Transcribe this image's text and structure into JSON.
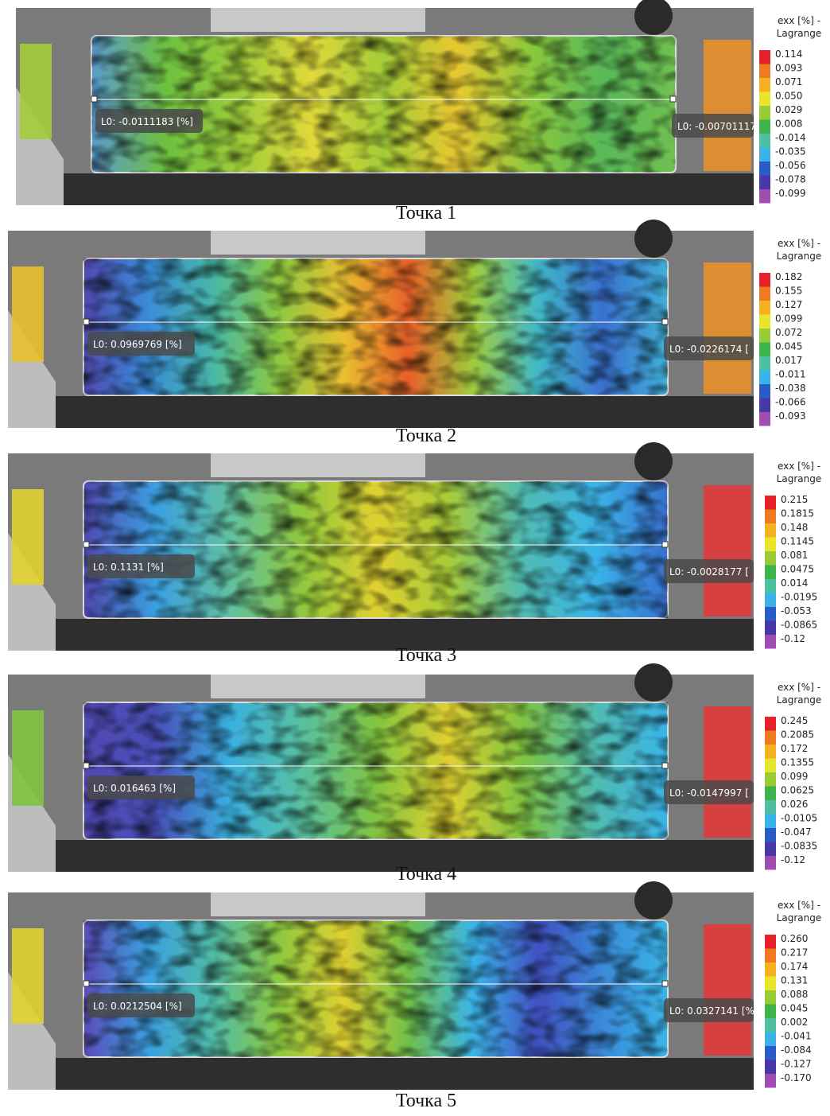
{
  "panels": [
    {
      "legend": {
        "title": [
          "exx [%] -",
          "Lagrange"
        ],
        "labels": [
          "0.114",
          "0.093",
          "0.071",
          "0.050",
          "0.029",
          "0.008",
          "-0.014",
          "-0.035",
          "-0.056",
          "-0.078",
          "-0.099"
        ]
      },
      "markers": [
        "L0: -0.0111183 [%]",
        "L0: -0.00701117"
      ],
      "caption": "Точка 1"
    },
    {
      "legend": {
        "title": [
          "exx [%] -",
          "Lagrange"
        ],
        "labels": [
          "0.182",
          "0.155",
          "0.127",
          "0.099",
          "0.072",
          "0.045",
          "0.017",
          "-0.011",
          "-0.038",
          "-0.066",
          "-0.093"
        ]
      },
      "markers": [
        "L0: 0.0969769 [%]",
        "L0: -0.0226174 ["
      ],
      "caption": "Точка 2"
    },
    {
      "legend": {
        "title": [
          "exx [%] -",
          "Lagrange"
        ],
        "labels": [
          "0.215",
          "0.1815",
          "0.148",
          "0.1145",
          "0.081",
          "0.0475",
          "0.014",
          "-0.0195",
          "-0.053",
          "-0.0865",
          "-0.12"
        ]
      },
      "markers": [
        "L0: 0.1131 [%]",
        "L0: -0.0028177 ["
      ],
      "caption": "Точка 3"
    },
    {
      "legend": {
        "title": [
          "exx [%] -",
          "Lagrange"
        ],
        "labels": [
          "0.245",
          "0.2085",
          "0.172",
          "0.1355",
          "0.099",
          "0.0625",
          "0.026",
          "-0.0105",
          "-0.047",
          "-0.0835",
          "-0.12"
        ]
      },
      "markers": [
        "L0: 0.016463 [%]",
        "L0: -0.0147997 ["
      ],
      "caption": "Точка 4"
    },
    {
      "legend": {
        "title": [
          "exx [%] -",
          "Lagrange"
        ],
        "labels": [
          "0.260",
          "0.217",
          "0.174",
          "0.131",
          "0.088",
          "0.045",
          "0.002",
          "-0.041",
          "-0.084",
          "-0.127",
          "-0.170"
        ]
      },
      "markers": [
        "L0: 0.0212504 [%]",
        "L0: 0.0327141 [%"
      ],
      "caption": "Точка 5"
    }
  ]
}
